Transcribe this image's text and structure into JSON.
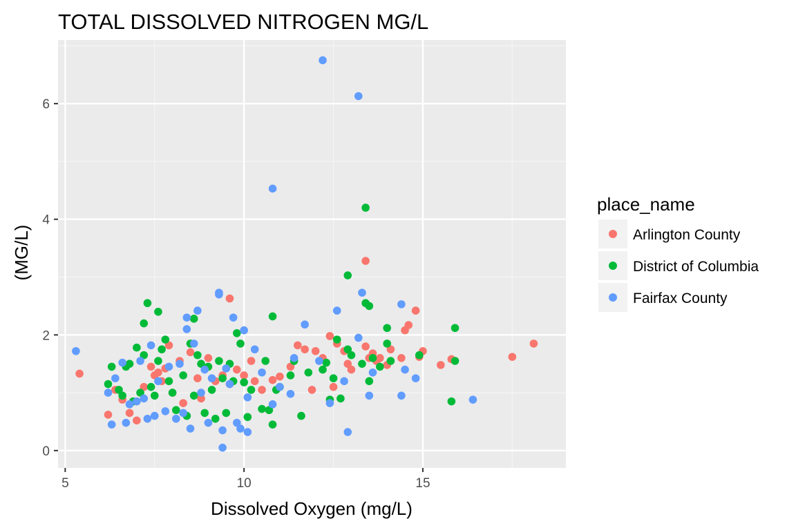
{
  "chart_data": {
    "type": "scatter",
    "title": "TOTAL DISSOLVED NITROGEN MG/L",
    "xlabel": "Dissolved Oxygen (mg/L)",
    "ylabel": "(MG/L)",
    "xlim": [
      4.8,
      19.0
    ],
    "ylim": [
      -0.3,
      7.1
    ],
    "x_ticks": [
      5,
      10,
      15
    ],
    "y_ticks": [
      0,
      2,
      4,
      6
    ],
    "grid": true,
    "legend": {
      "title": "place_name",
      "placement": "right"
    },
    "series": [
      {
        "name": "Arlington County",
        "color": "#F8766D",
        "x": [
          5.4,
          6.2,
          6.4,
          6.6,
          6.8,
          7.0,
          7.2,
          7.4,
          7.5,
          7.6,
          7.7,
          7.8,
          7.9,
          8.0,
          8.2,
          8.3,
          8.5,
          8.7,
          8.8,
          9.0,
          9.2,
          9.4,
          9.6,
          9.6,
          9.8,
          10.0,
          10.2,
          10.3,
          10.5,
          10.8,
          11.0,
          11.3,
          11.5,
          11.7,
          11.9,
          12.0,
          12.2,
          12.4,
          12.5,
          12.6,
          12.8,
          12.9,
          13.0,
          13.4,
          13.4,
          13.5,
          13.6,
          13.7,
          13.8,
          14.0,
          14.1,
          14.4,
          14.5,
          14.6,
          14.8,
          14.9,
          15.0,
          15.5,
          15.8,
          17.5,
          18.1
        ],
        "y": [
          1.33,
          0.62,
          1.05,
          0.88,
          0.65,
          0.52,
          1.1,
          1.45,
          1.3,
          1.35,
          1.2,
          1.42,
          1.82,
          1.0,
          1.55,
          0.82,
          1.7,
          1.25,
          0.9,
          1.6,
          1.2,
          1.3,
          1.15,
          2.63,
          1.4,
          1.3,
          1.55,
          1.2,
          1.05,
          1.22,
          1.28,
          1.45,
          1.82,
          1.75,
          1.05,
          1.72,
          1.6,
          1.98,
          1.1,
          1.85,
          1.72,
          1.5,
          1.4,
          3.28,
          1.8,
          1.6,
          1.68,
          1.55,
          1.6,
          1.48,
          1.75,
          1.6,
          2.08,
          2.17,
          2.42,
          1.62,
          1.72,
          1.48,
          1.58,
          1.62,
          1.85
        ]
      },
      {
        "name": "District of Columbia",
        "color": "#00BA38",
        "x": [
          6.2,
          6.3,
          6.5,
          6.6,
          6.7,
          6.8,
          6.9,
          7.0,
          7.1,
          7.2,
          7.2,
          7.3,
          7.4,
          7.5,
          7.6,
          7.6,
          7.7,
          7.8,
          7.9,
          8.0,
          8.1,
          8.3,
          8.4,
          8.5,
          8.6,
          8.6,
          8.7,
          8.8,
          8.9,
          9.0,
          9.1,
          9.2,
          9.3,
          9.4,
          9.5,
          9.6,
          9.7,
          9.8,
          9.9,
          10.0,
          10.1,
          10.2,
          10.5,
          10.6,
          10.7,
          10.8,
          10.8,
          10.9,
          11.0,
          11.3,
          11.4,
          11.6,
          11.8,
          12.2,
          12.3,
          12.4,
          12.5,
          12.6,
          12.7,
          12.9,
          12.9,
          13.0,
          13.3,
          13.4,
          13.4,
          13.5,
          13.5,
          13.6,
          13.8,
          14.0,
          14.0,
          14.1,
          14.9,
          15.8,
          15.9,
          15.9
        ],
        "y": [
          1.15,
          1.45,
          1.05,
          0.95,
          1.45,
          1.5,
          0.85,
          1.78,
          1.0,
          2.2,
          1.65,
          2.55,
          1.1,
          0.95,
          1.55,
          2.4,
          1.75,
          1.92,
          1.2,
          1.0,
          0.7,
          1.3,
          0.6,
          1.85,
          0.95,
          2.28,
          1.65,
          1.5,
          0.65,
          1.45,
          1.05,
          0.55,
          1.55,
          1.25,
          0.65,
          1.5,
          1.2,
          2.03,
          1.85,
          1.18,
          0.58,
          1.05,
          0.72,
          1.55,
          0.7,
          0.45,
          2.32,
          1.05,
          1.1,
          1.3,
          1.55,
          0.6,
          1.35,
          1.4,
          1.52,
          0.88,
          1.25,
          1.92,
          0.9,
          1.75,
          3.03,
          1.65,
          1.5,
          2.55,
          4.2,
          1.2,
          2.5,
          1.6,
          1.45,
          1.85,
          2.12,
          1.55,
          1.65,
          0.85,
          1.55,
          2.12
        ]
      },
      {
        "name": "Fairfax County",
        "color": "#619CFF",
        "x": [
          5.3,
          6.2,
          6.3,
          6.4,
          6.6,
          6.7,
          6.8,
          7.0,
          7.1,
          7.2,
          7.3,
          7.4,
          7.5,
          7.6,
          7.8,
          7.9,
          8.1,
          8.2,
          8.3,
          8.4,
          8.4,
          8.5,
          8.6,
          8.7,
          8.8,
          8.9,
          9.0,
          9.1,
          9.3,
          9.3,
          9.4,
          9.4,
          9.5,
          9.6,
          9.7,
          9.8,
          9.9,
          10.0,
          10.1,
          10.1,
          10.3,
          10.5,
          10.8,
          10.8,
          11.0,
          11.3,
          11.4,
          11.7,
          12.1,
          12.2,
          12.4,
          12.6,
          12.8,
          12.9,
          13.2,
          13.2,
          13.3,
          13.5,
          13.6,
          14.4,
          14.4,
          14.5,
          14.8,
          16.4
        ],
        "y": [
          1.72,
          1.0,
          0.45,
          1.25,
          1.52,
          0.48,
          0.8,
          0.85,
          1.55,
          0.9,
          0.55,
          1.82,
          0.6,
          1.2,
          0.68,
          1.45,
          0.55,
          1.5,
          0.65,
          2.1,
          2.3,
          0.38,
          1.85,
          2.42,
          1.0,
          1.4,
          0.48,
          1.25,
          2.7,
          2.73,
          0.35,
          0.05,
          1.42,
          1.15,
          2.3,
          0.48,
          0.38,
          2.08,
          0.32,
          0.92,
          1.75,
          1.35,
          4.53,
          0.8,
          1.1,
          0.98,
          1.6,
          2.18,
          1.55,
          6.75,
          0.82,
          2.42,
          1.2,
          0.32,
          6.13,
          1.95,
          2.73,
          0.95,
          1.35,
          2.53,
          0.95,
          1.4,
          1.25,
          0.88
        ]
      }
    ]
  }
}
